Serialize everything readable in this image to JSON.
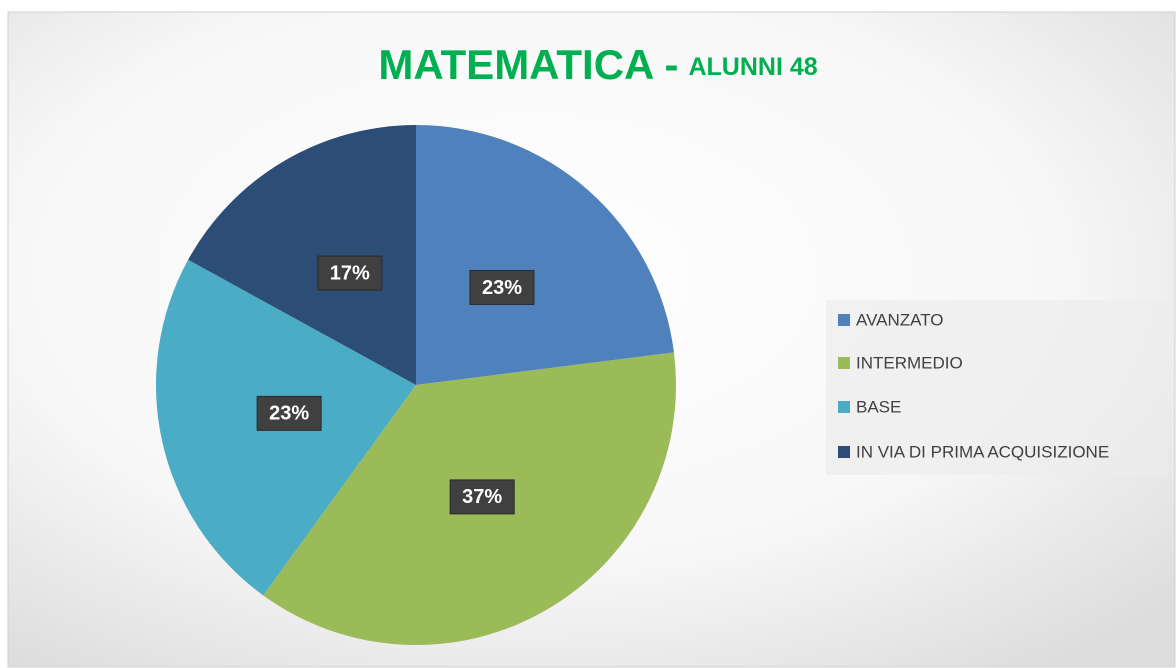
{
  "chart_data": {
    "type": "pie",
    "title": "MATEMATICA -",
    "subtitle": "ALUNNI 48",
    "categories": [
      "AVANZATO",
      "INTERMEDIO",
      "BASE",
      "IN VIA DI PRIMA ACQUISIZIONE"
    ],
    "values": [
      23,
      37,
      23,
      17
    ],
    "value_labels": [
      "23%",
      "37%",
      "23%",
      "17%"
    ],
    "colors": [
      "#4f81bd",
      "#9bbb59",
      "#4bacc6",
      "#2c4d75"
    ],
    "legend": "right"
  }
}
